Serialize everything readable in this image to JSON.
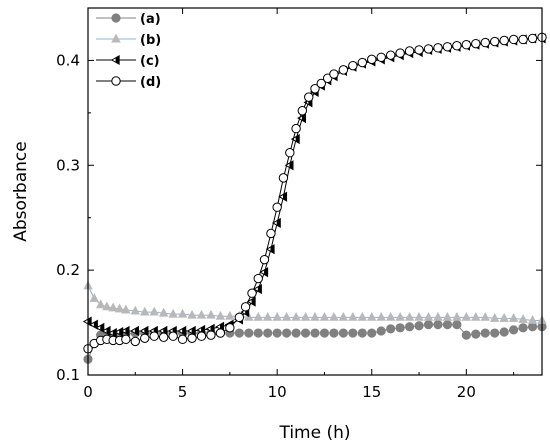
{
  "chart_data": {
    "type": "line",
    "xlabel": "Time (h)",
    "ylabel": "Absorbance",
    "xlim": [
      0,
      24
    ],
    "ylim": [
      0.1,
      0.45
    ],
    "x_ticks": [
      0,
      5,
      10,
      15,
      20
    ],
    "y_ticks": [
      0.1,
      0.2,
      0.3,
      0.4
    ],
    "grid": false,
    "legend_position": "top-left",
    "series": [
      {
        "name": "(a)",
        "marker": "filled-circle",
        "color": "#808080",
        "x": [
          0,
          0.33,
          0.67,
          1,
          1.33,
          1.67,
          2,
          2.5,
          3,
          3.5,
          4,
          4.5,
          5,
          5.5,
          6,
          6.5,
          7,
          7.5,
          8,
          8.5,
          9,
          9.5,
          10,
          10.5,
          11,
          11.5,
          12,
          12.5,
          13,
          13.5,
          14,
          14.5,
          15,
          15.5,
          16,
          16.5,
          17,
          17.5,
          18,
          18.5,
          19,
          19.5,
          20,
          20.5,
          21,
          21.5,
          22,
          22.5,
          23,
          23.5,
          24
        ],
        "y": [
          0.115,
          0.13,
          0.138,
          0.137,
          0.138,
          0.139,
          0.139,
          0.14,
          0.14,
          0.14,
          0.14,
          0.14,
          0.14,
          0.14,
          0.14,
          0.14,
          0.14,
          0.14,
          0.14,
          0.14,
          0.14,
          0.14,
          0.14,
          0.14,
          0.14,
          0.14,
          0.14,
          0.14,
          0.14,
          0.14,
          0.14,
          0.14,
          0.14,
          0.142,
          0.144,
          0.145,
          0.146,
          0.147,
          0.148,
          0.148,
          0.148,
          0.148,
          0.138,
          0.139,
          0.14,
          0.14,
          0.141,
          0.143,
          0.145,
          0.146,
          0.146
        ]
      },
      {
        "name": "(b)",
        "marker": "filled-triangle-up",
        "color": "#b8b8b8",
        "line_color": "#8fb4d8",
        "x": [
          0,
          0.33,
          0.67,
          1,
          1.33,
          1.67,
          2,
          2.5,
          3,
          3.5,
          4,
          4.5,
          5,
          5.5,
          6,
          6.5,
          7,
          7.5,
          8,
          8.5,
          9,
          9.5,
          10,
          10.5,
          11,
          11.5,
          12,
          12.5,
          13,
          13.5,
          14,
          14.5,
          15,
          15.5,
          16,
          16.5,
          17,
          17.5,
          18,
          18.5,
          19,
          19.5,
          20,
          20.5,
          21,
          21.5,
          22,
          22.5,
          23,
          23.5,
          24
        ],
        "y": [
          0.185,
          0.173,
          0.167,
          0.165,
          0.164,
          0.163,
          0.162,
          0.161,
          0.16,
          0.16,
          0.159,
          0.158,
          0.158,
          0.157,
          0.157,
          0.157,
          0.156,
          0.156,
          0.156,
          0.155,
          0.155,
          0.155,
          0.155,
          0.155,
          0.155,
          0.155,
          0.155,
          0.155,
          0.155,
          0.155,
          0.155,
          0.155,
          0.155,
          0.155,
          0.155,
          0.155,
          0.155,
          0.155,
          0.155,
          0.155,
          0.155,
          0.155,
          0.155,
          0.155,
          0.155,
          0.154,
          0.154,
          0.154,
          0.153,
          0.152,
          0.152
        ]
      },
      {
        "name": "(c)",
        "marker": "half-filled-triangle-left",
        "color": "#000000",
        "x": [
          0,
          0.33,
          0.67,
          1,
          1.33,
          1.67,
          2,
          2.5,
          3,
          3.5,
          4,
          4.5,
          5,
          5.5,
          6,
          6.5,
          7,
          7.5,
          8,
          8.33,
          8.67,
          9,
          9.33,
          9.67,
          10,
          10.33,
          10.67,
          11,
          11.33,
          11.67,
          12,
          12.33,
          12.67,
          13,
          13.5,
          14,
          14.5,
          15,
          15.5,
          16,
          16.5,
          17,
          17.5,
          18,
          18.5,
          19,
          19.5,
          20,
          20.5,
          21,
          21.5,
          22,
          22.5,
          23,
          23.5,
          24
        ],
        "y": [
          0.151,
          0.148,
          0.145,
          0.142,
          0.14,
          0.141,
          0.142,
          0.142,
          0.142,
          0.142,
          0.142,
          0.142,
          0.142,
          0.142,
          0.143,
          0.144,
          0.146,
          0.148,
          0.153,
          0.16,
          0.17,
          0.182,
          0.198,
          0.22,
          0.245,
          0.27,
          0.3,
          0.325,
          0.345,
          0.36,
          0.37,
          0.376,
          0.381,
          0.385,
          0.39,
          0.394,
          0.397,
          0.399,
          0.401,
          0.403,
          0.405,
          0.407,
          0.408,
          0.41,
          0.411,
          0.412,
          0.413,
          0.414,
          0.415,
          0.416,
          0.417,
          0.418,
          0.419,
          0.42,
          0.421,
          0.421
        ]
      },
      {
        "name": "(d)",
        "marker": "open-circle",
        "color": "#000000",
        "x": [
          0,
          0.33,
          0.67,
          1,
          1.33,
          1.67,
          2,
          2.5,
          3,
          3.5,
          4,
          4.5,
          5,
          5.5,
          6,
          6.5,
          7,
          7.5,
          8,
          8.33,
          8.67,
          9,
          9.33,
          9.67,
          10,
          10.33,
          10.67,
          11,
          11.33,
          11.67,
          12,
          12.33,
          12.67,
          13,
          13.5,
          14,
          14.5,
          15,
          15.5,
          16,
          16.5,
          17,
          17.5,
          18,
          18.5,
          19,
          19.5,
          20,
          20.5,
          21,
          21.5,
          22,
          22.5,
          23,
          23.5,
          24
        ],
        "y": [
          0.125,
          0.13,
          0.133,
          0.134,
          0.133,
          0.133,
          0.134,
          0.132,
          0.135,
          0.137,
          0.136,
          0.137,
          0.134,
          0.135,
          0.137,
          0.138,
          0.14,
          0.145,
          0.155,
          0.165,
          0.178,
          0.192,
          0.21,
          0.235,
          0.26,
          0.288,
          0.312,
          0.335,
          0.352,
          0.365,
          0.373,
          0.378,
          0.383,
          0.387,
          0.391,
          0.395,
          0.398,
          0.401,
          0.403,
          0.405,
          0.407,
          0.409,
          0.41,
          0.411,
          0.412,
          0.413,
          0.414,
          0.415,
          0.416,
          0.417,
          0.418,
          0.419,
          0.42,
          0.42,
          0.421,
          0.422
        ]
      }
    ]
  }
}
